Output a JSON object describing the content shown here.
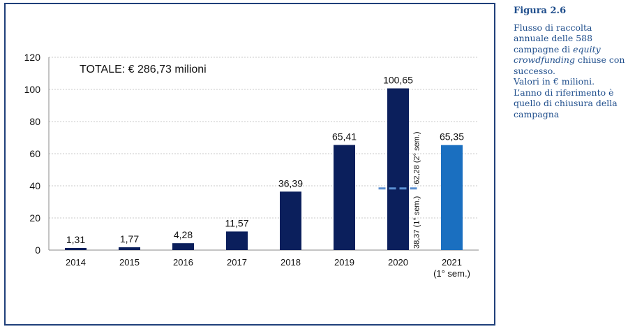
{
  "chart_data": {
    "type": "bar",
    "categories": [
      "2014",
      "2015",
      "2016",
      "2017",
      "2018",
      "2019",
      "2020",
      "2021"
    ],
    "category_sublabels": [
      "",
      "",
      "",
      "",
      "",
      "",
      "",
      "(1° sem.)"
    ],
    "values": [
      1.31,
      1.77,
      4.28,
      11.57,
      36.39,
      65.41,
      100.65,
      65.35
    ],
    "value_labels": [
      "1,31",
      "1,77",
      "4,28",
      "11,57",
      "36,39",
      "65,41",
      "100,65",
      "65,35"
    ],
    "bar_colors": [
      "#0b1f5c",
      "#0b1f5c",
      "#0b1f5c",
      "#0b1f5c",
      "#0b1f5c",
      "#0b1f5c",
      "#0b1f5c",
      "#1a6fc0"
    ],
    "ylim": [
      0,
      120
    ],
    "yticks": [
      0,
      20,
      40,
      60,
      80,
      100,
      120
    ],
    "grid": true,
    "annotation_total": "TOTALE: € 286,73 milioni",
    "split_2020": {
      "category": "2020",
      "split_value": 38.37,
      "first_half_label": "38,37 (1° sem.)",
      "second_half_label": "62,28 (2° sem.)",
      "line_color": "#5b8fd1"
    }
  },
  "caption": {
    "figure_label": "Figura 2.6",
    "text_before": "Flusso di raccolta annuale delle 588 campagne di ",
    "text_italic": "equity crowdfunding",
    "text_after": " chiuse con successo.",
    "line2": "Valori in € milioni.",
    "line3": "L’anno di riferimento è quello di chiusura della campagna"
  }
}
